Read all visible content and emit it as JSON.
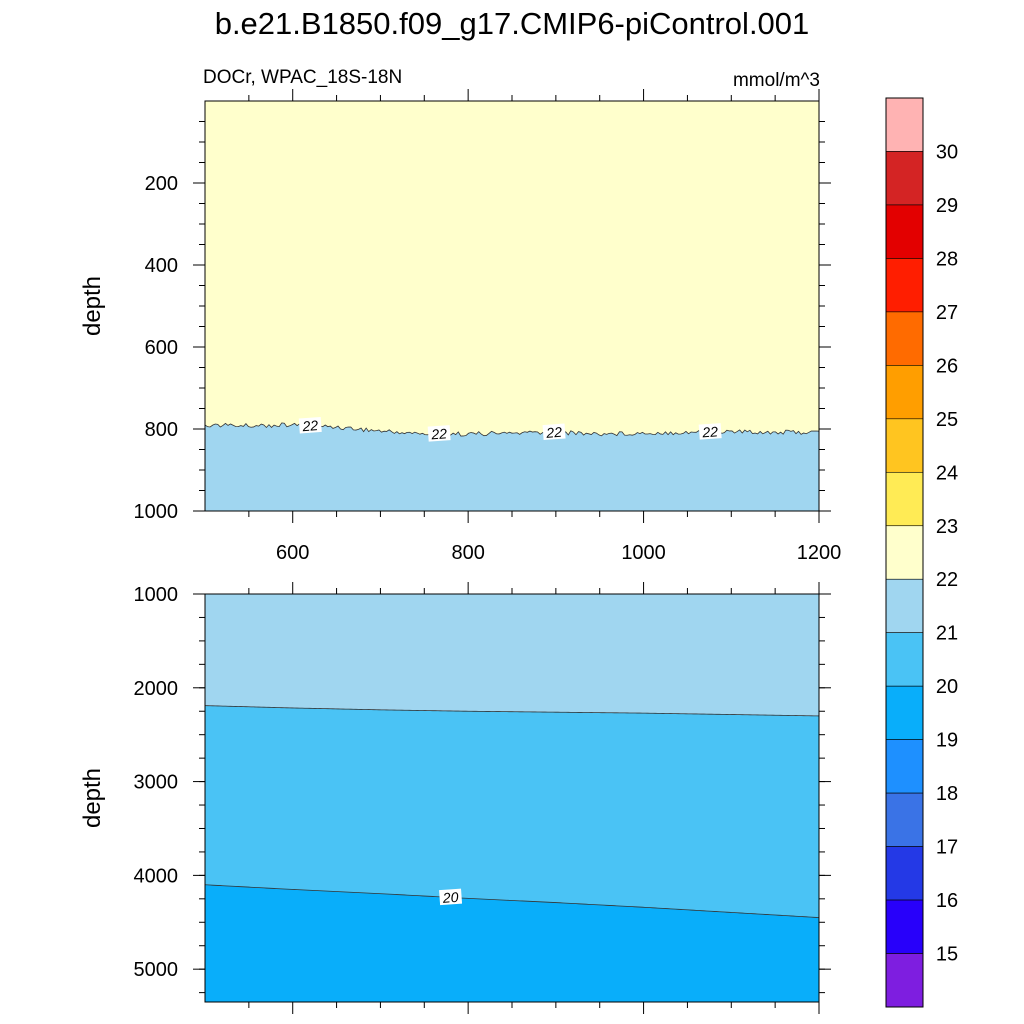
{
  "title": "b.e21.B1850.f09_g17.CMIP6-piControl.001",
  "subtitle_left": "DOCr, WPAC_18S-18N",
  "subtitle_right": "mmol/m^3",
  "chart_data": [
    {
      "type": "contour",
      "panel": "upper",
      "title": "b.e21.B1850.f09_g17.CMIP6-piControl.001",
      "subtitle_left": "DOCr, WPAC_18S-18N",
      "units": "mmol/m^3",
      "xlabel": "",
      "ylabel": "depth",
      "xlim": [
        500,
        1200
      ],
      "ylim": [
        1000,
        0
      ],
      "y_reversed": true,
      "x_ticks": [
        600,
        800,
        1000,
        1200
      ],
      "y_ticks": [
        200,
        400,
        600,
        800,
        1000
      ],
      "regions": [
        {
          "range": "22-23",
          "color": "#FFFFCC",
          "depth_top": 0,
          "depth_bottom": "contour 22"
        },
        {
          "range": "21-22",
          "color": "#A0D6F0",
          "depth_top": "contour 22",
          "depth_bottom": 1000
        }
      ],
      "contours": [
        {
          "level": 22,
          "x": [
            500,
            550,
            600,
            650,
            700,
            750,
            800,
            850,
            900,
            950,
            1000,
            1050,
            1100,
            1150,
            1200
          ],
          "depth": [
            790,
            792,
            790,
            795,
            805,
            812,
            812,
            810,
            808,
            812,
            810,
            808,
            806,
            808,
            808
          ]
        }
      ],
      "contour_labels": [
        {
          "text": "22",
          "x": 620
        },
        {
          "text": "22",
          "x": 767
        },
        {
          "text": "22",
          "x": 898
        },
        {
          "text": "22",
          "x": 1076
        }
      ]
    },
    {
      "type": "contour",
      "panel": "lower",
      "xlabel": "",
      "ylabel": "depth",
      "xlim": [
        500,
        1200
      ],
      "ylim": [
        5350,
        1000
      ],
      "y_reversed": true,
      "y_ticks": [
        1000,
        2000,
        3000,
        4000,
        5000
      ],
      "regions": [
        {
          "range": "21-22",
          "color": "#A0D6F0",
          "depth_top": 1000,
          "depth_bottom": "contour 21"
        },
        {
          "range": "20-21",
          "color": "#4AC3F5",
          "depth_top": "contour 21",
          "depth_bottom": "contour 20"
        },
        {
          "range": "19-20",
          "color": "#09AEFA",
          "depth_top": "contour 20",
          "depth_bottom": 5350
        }
      ],
      "contours": [
        {
          "level": 21,
          "x": [
            500,
            600,
            700,
            800,
            900,
            1000,
            1100,
            1200
          ],
          "depth": [
            2190,
            2215,
            2235,
            2250,
            2260,
            2270,
            2285,
            2300
          ]
        },
        {
          "level": 20,
          "x": [
            500,
            600,
            700,
            800,
            900,
            1000,
            1100,
            1200
          ],
          "depth": [
            4100,
            4150,
            4195,
            4245,
            4290,
            4340,
            4395,
            4450
          ]
        }
      ],
      "contour_labels": [
        {
          "text": "20",
          "x": 780
        }
      ]
    }
  ],
  "colorbar": {
    "levels": [
      "15",
      "16",
      "17",
      "18",
      "19",
      "20",
      "21",
      "22",
      "23",
      "24",
      "25",
      "26",
      "27",
      "28",
      "29",
      "30"
    ],
    "colors": [
      "#7E1EE0",
      "#2800FA",
      "#2439E6",
      "#3A73E6",
      "#1E90FF",
      "#09AEFA",
      "#4AC3F5",
      "#A0D6F0",
      "#FFFFCC",
      "#FFEB55",
      "#FFC520",
      "#FF9E00",
      "#FF6B00",
      "#FF1E00",
      "#E30000",
      "#D42424",
      "#FFB3B3"
    ]
  }
}
